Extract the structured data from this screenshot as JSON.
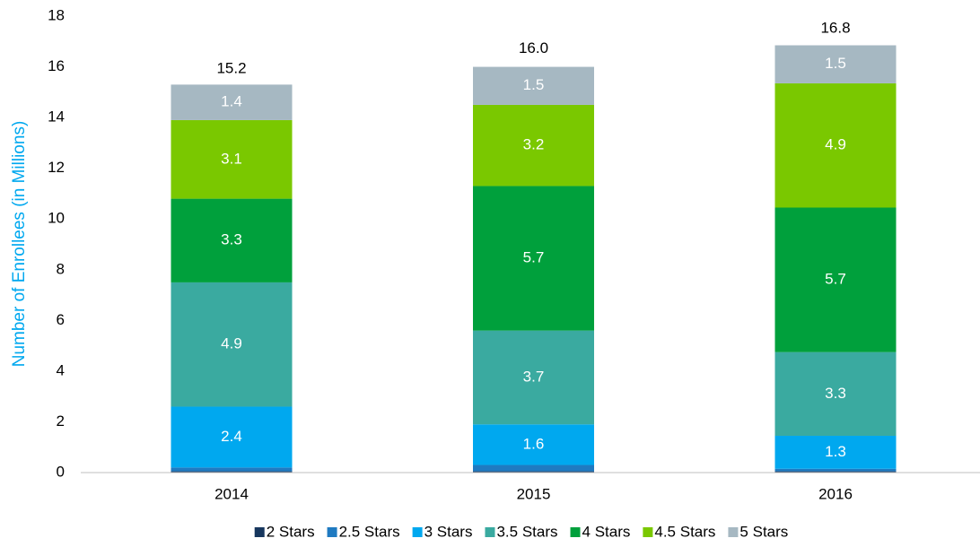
{
  "chart_data": {
    "type": "stacked_bar",
    "y_axis_label": "Number of Enrollees (in Millions)",
    "categories": [
      "2014",
      "2015",
      "2016"
    ],
    "series": [
      {
        "name": "2 Stars",
        "color": "#17375e",
        "values": [
          0.05,
          0.05,
          0.05
        ]
      },
      {
        "name": "2.5 Stars",
        "color": "#1f7ac1",
        "values": [
          0.15,
          0.25,
          0.1
        ]
      },
      {
        "name": "3 Stars",
        "color": "#00a8ef",
        "values": [
          2.4,
          1.6,
          1.3
        ],
        "labels": true
      },
      {
        "name": "3.5 Stars",
        "color": "#3aaaa0",
        "values": [
          4.9,
          3.7,
          3.3
        ],
        "labels": true
      },
      {
        "name": "4 Stars",
        "color": "#00a03c",
        "values": [
          3.3,
          5.7,
          5.7
        ],
        "labels": true
      },
      {
        "name": "4.5 Stars",
        "color": "#7ac800",
        "values": [
          3.1,
          3.2,
          4.9
        ],
        "labels": true
      },
      {
        "name": "5 Stars",
        "color": "#a6b8c2",
        "values": [
          1.4,
          1.5,
          1.5
        ],
        "labels": true
      }
    ],
    "totals": {
      "values": [
        15.2,
        16.0,
        16.8
      ],
      "value_labels": [
        "15.2",
        "16.0",
        "16.8"
      ]
    },
    "ylim": [
      0,
      18
    ],
    "yticks": [
      0,
      2,
      4,
      6,
      8,
      10,
      12,
      14,
      16,
      18
    ],
    "grid": false
  }
}
